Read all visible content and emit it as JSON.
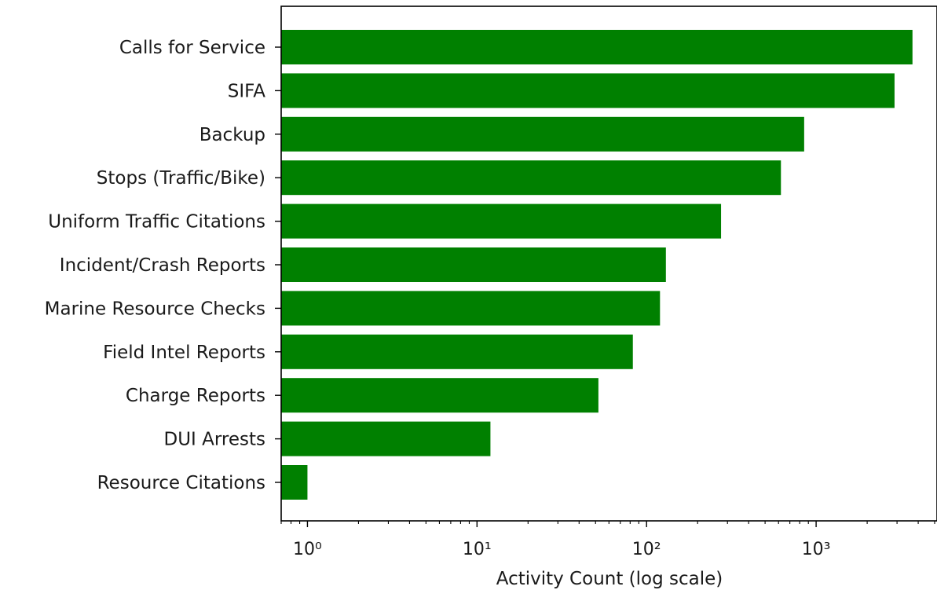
{
  "chart_data": {
    "type": "bar",
    "orientation": "horizontal",
    "title": "",
    "xlabel": "Activity Count (log scale)",
    "ylabel": "",
    "xscale": "log",
    "xlim": [
      0.7,
      5000
    ],
    "x_ticks": [
      {
        "value": 1,
        "label": "10⁰"
      },
      {
        "value": 10,
        "label": "10¹"
      },
      {
        "value": 100,
        "label": "10²"
      },
      {
        "value": 1000,
        "label": "10³"
      }
    ],
    "bar_color": "#008000",
    "grid": false,
    "categories": [
      "Calls for Service",
      "SIFA",
      "Backup",
      "Stops (Traffic/Bike)",
      "Uniform Traffic Citations",
      "Incident/Crash Reports",
      "Marine Resource Checks",
      "Field Intel Reports",
      "Charge Reports",
      "DUI Arrests",
      "Resource Citations"
    ],
    "values": [
      3700,
      2900,
      850,
      620,
      275,
      130,
      120,
      83,
      52,
      12,
      1
    ]
  }
}
